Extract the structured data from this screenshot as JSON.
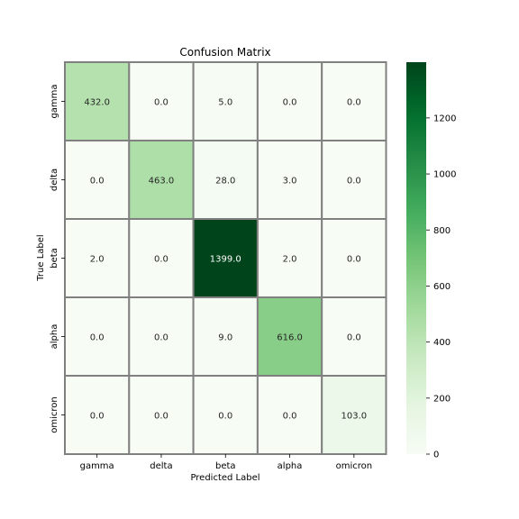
{
  "chart_data": {
    "type": "heatmap",
    "title": "Confusion Matrix",
    "xlabel": "Predicted Label",
    "ylabel": "True Label",
    "x_categories": [
      "gamma",
      "delta",
      "beta",
      "alpha",
      "omicron"
    ],
    "y_categories": [
      "gamma",
      "delta",
      "beta",
      "alpha",
      "omicron"
    ],
    "values": [
      [
        432.0,
        0.0,
        5.0,
        0.0,
        0.0
      ],
      [
        0.0,
        463.0,
        28.0,
        3.0,
        0.0
      ],
      [
        2.0,
        0.0,
        1399.0,
        2.0,
        0.0
      ],
      [
        0.0,
        0.0,
        9.0,
        616.0,
        0.0
      ],
      [
        0.0,
        0.0,
        0.0,
        0.0,
        103.0
      ]
    ],
    "value_labels": [
      [
        "432.0",
        "0.0",
        "5.0",
        "0.0",
        "0.0"
      ],
      [
        "0.0",
        "463.0",
        "28.0",
        "3.0",
        "0.0"
      ],
      [
        "2.0",
        "0.0",
        "1399.0",
        "2.0",
        "0.0"
      ],
      [
        "0.0",
        "0.0",
        "9.0",
        "616.0",
        "0.0"
      ],
      [
        "0.0",
        "0.0",
        "0.0",
        "0.0",
        "103.0"
      ]
    ],
    "colorbar": {
      "range": [
        0,
        1399
      ],
      "ticks": [
        0,
        200,
        400,
        600,
        800,
        1000,
        1200
      ],
      "tick_labels": [
        "0",
        "200",
        "400",
        "600",
        "800",
        "1000",
        "1200"
      ],
      "colormap": "Greens"
    }
  }
}
